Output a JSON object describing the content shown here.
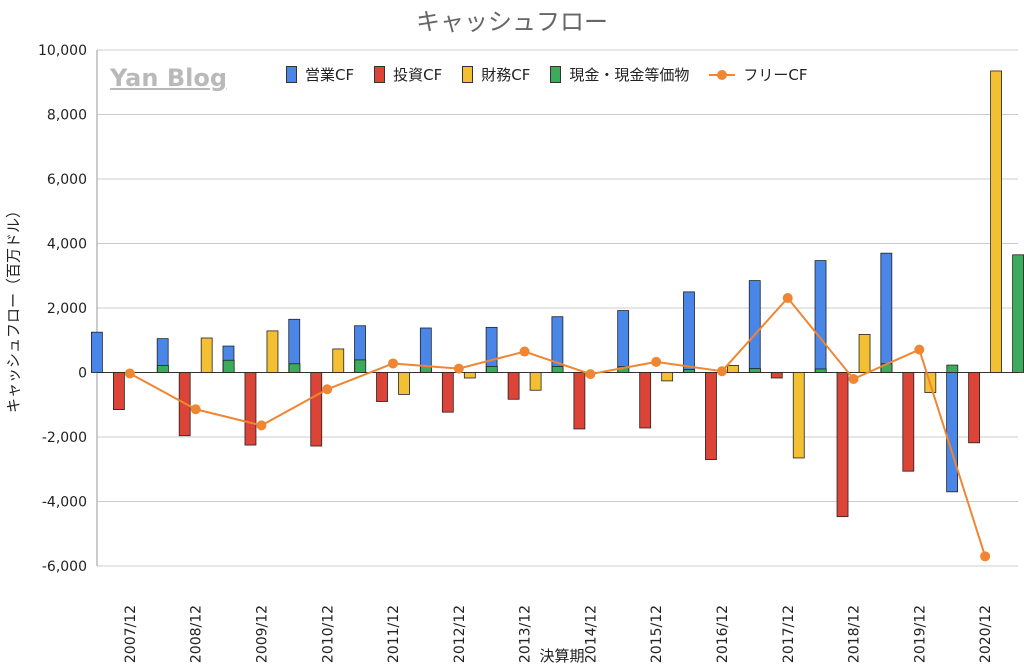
{
  "watermark": "Yan Blog",
  "chart_data": {
    "type": "bar",
    "title": "キャッシュフロー",
    "xlabel": "決算期",
    "ylabel": "キャッシュフロー（百万ドル）",
    "ylim": [
      -6000,
      10000
    ],
    "yticks": [
      -6000,
      -4000,
      -2000,
      0,
      2000,
      4000,
      6000,
      8000,
      10000
    ],
    "ytick_labels": [
      "-6,000",
      "-4,000",
      "-2,000",
      "0",
      "2,000",
      "4,000",
      "6,000",
      "8,000",
      "10,000"
    ],
    "grid": true,
    "legend_position": "top",
    "categories": [
      "2007/12",
      "2008/12",
      "2009/12",
      "2010/12",
      "2011/12",
      "2012/12",
      "2013/12",
      "2014/12",
      "2015/12",
      "2016/12",
      "2017/12",
      "2018/12",
      "2019/12",
      "2020/12"
    ],
    "series": [
      {
        "name": "営業CF",
        "kind": "bar",
        "color": "#4a86e8",
        "values": [
          1250,
          1050,
          820,
          1650,
          1450,
          1380,
          1400,
          1730,
          1920,
          2500,
          2850,
          3470,
          3700,
          -3700
        ]
      },
      {
        "name": "投資CF",
        "kind": "bar",
        "color": "#db4437",
        "values": [
          -1150,
          -1960,
          -2250,
          -2280,
          -900,
          -1230,
          -830,
          -1750,
          -1720,
          -2700,
          -170,
          -4470,
          -3060,
          -2180
        ]
      },
      {
        "name": "財務CF",
        "kind": "bar",
        "color": "#f4c033",
        "values": [
          0,
          1070,
          1290,
          730,
          -680,
          -170,
          -550,
          0,
          -260,
          220,
          -2650,
          1180,
          -620,
          9350
        ]
      },
      {
        "name": "現金・現金等価物",
        "kind": "bar",
        "color": "#3cab5c",
        "values": [
          220,
          380,
          270,
          390,
          200,
          190,
          190,
          180,
          90,
          120,
          110,
          270,
          230,
          3650
        ]
      },
      {
        "name": "フリーCF",
        "kind": "line",
        "color": "#f08532",
        "values": [
          -30,
          -1140,
          -1640,
          -520,
          280,
          120,
          650,
          -50,
          330,
          40,
          2310,
          -200,
          710,
          -5700
        ]
      }
    ]
  }
}
